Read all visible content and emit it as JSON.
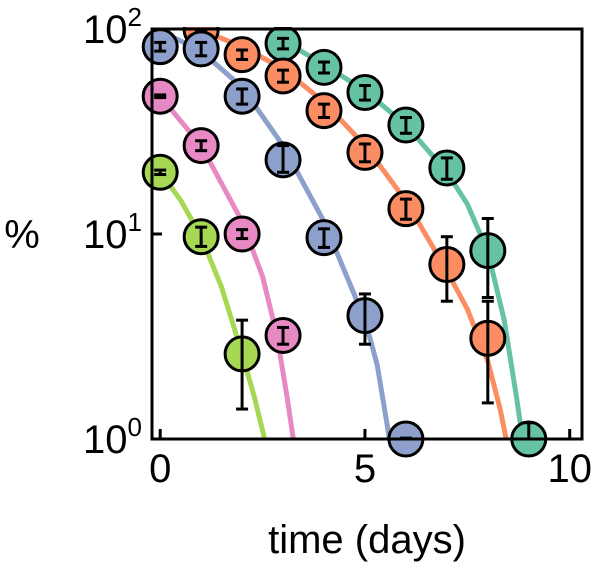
{
  "chart_data": {
    "type": "scatter",
    "title": "",
    "xlabel": "time (days)",
    "ylabel": "%",
    "xlim": [
      -0.2,
      10.3
    ],
    "ylim": [
      1,
      100
    ],
    "yscale": "log",
    "grid": false,
    "x_ticks": [
      0,
      5,
      10
    ],
    "x_tick_labels": [
      "0",
      "5",
      "10"
    ],
    "y_ticks": [
      1,
      10,
      100
    ],
    "y_tick_labels": [
      {
        "base": "10",
        "exp": "0"
      },
      {
        "base": "10",
        "exp": "1"
      },
      {
        "base": "10",
        "exp": "2"
      }
    ],
    "series": [
      {
        "color": "#a6d854",
        "points": [
          {
            "x": 0,
            "y": 20,
            "lo": 19.5,
            "hi": 20.5
          },
          {
            "x": 1,
            "y": 9.7,
            "lo": 8.7,
            "hi": 10.8
          },
          {
            "x": 2,
            "y": 2.6,
            "lo": 1.4,
            "hi": 3.8
          }
        ],
        "curve": [
          [
            0,
            20
          ],
          [
            0.5,
            14.6
          ],
          [
            1,
            9.7
          ],
          [
            1.5,
            5.5
          ],
          [
            2,
            2.6
          ],
          [
            2.3,
            1.6
          ],
          [
            2.55,
            1.0
          ]
        ]
      },
      {
        "color": "#e78ac3",
        "points": [
          {
            "x": 0,
            "y": 47,
            "lo": 46.3,
            "hi": 47.7
          },
          {
            "x": 1,
            "y": 27,
            "lo": 25.5,
            "hi": 28.5
          },
          {
            "x": 2,
            "y": 10,
            "lo": 9.5,
            "hi": 10.5
          },
          {
            "x": 3,
            "y": 3.2,
            "lo": 2.9,
            "hi": 3.5
          }
        ],
        "curve": [
          [
            0,
            47
          ],
          [
            1,
            27
          ],
          [
            2,
            11.5
          ],
          [
            2.5,
            6.2
          ],
          [
            2.85,
            3.2
          ],
          [
            3.1,
            1.6
          ],
          [
            3.25,
            1.0
          ]
        ]
      },
      {
        "color": "#8da0cb",
        "points": [
          {
            "x": 0,
            "y": 82,
            "lo": 78,
            "hi": 86
          },
          {
            "x": 1,
            "y": 80,
            "lo": 74,
            "hi": 86
          },
          {
            "x": 2,
            "y": 47,
            "lo": 43,
            "hi": 51
          },
          {
            "x": 3,
            "y": 23,
            "lo": 20,
            "hi": 27
          },
          {
            "x": 4,
            "y": 9.6,
            "lo": 8.6,
            "hi": 10.6
          },
          {
            "x": 5,
            "y": 4.0,
            "lo": 2.9,
            "hi": 5.1
          },
          {
            "x": 6,
            "y": 1,
            "lo": 0.99,
            "hi": 1.01
          }
        ],
        "curve": [
          [
            0,
            98
          ],
          [
            1,
            78
          ],
          [
            2,
            52
          ],
          [
            3,
            27
          ],
          [
            4,
            11.5
          ],
          [
            4.5,
            6.6
          ],
          [
            5,
            3.8
          ],
          [
            5.3,
            2.3
          ],
          [
            5.6,
            1.0
          ]
        ]
      },
      {
        "color": "#fc8d62",
        "points": [
          {
            "x": 1,
            "y": 99,
            "lo": 98,
            "hi": 100
          },
          {
            "x": 2,
            "y": 75,
            "lo": 71,
            "hi": 79
          },
          {
            "x": 3,
            "y": 59,
            "lo": 55,
            "hi": 63
          },
          {
            "x": 4,
            "y": 40,
            "lo": 37,
            "hi": 43
          },
          {
            "x": 5,
            "y": 25,
            "lo": 22.5,
            "hi": 27.5
          },
          {
            "x": 6,
            "y": 13.3,
            "lo": 11.8,
            "hi": 14.8
          },
          {
            "x": 7,
            "y": 7.1,
            "lo": 4.7,
            "hi": 9.7
          },
          {
            "x": 8,
            "y": 3.1,
            "lo": 1.5,
            "hi": 4.7
          }
        ],
        "curve": [
          [
            1,
            99
          ],
          [
            2,
            82
          ],
          [
            3,
            64
          ],
          [
            4,
            44
          ],
          [
            5,
            27
          ],
          [
            6,
            14.5
          ],
          [
            7,
            6.6
          ],
          [
            7.5,
            4.3
          ],
          [
            8,
            2.4
          ],
          [
            8.3,
            1.4
          ],
          [
            8.45,
            1.0
          ]
        ]
      },
      {
        "color": "#66c2a5",
        "points": [
          {
            "x": 3,
            "y": 85,
            "lo": 80,
            "hi": 90
          },
          {
            "x": 4,
            "y": 65,
            "lo": 61,
            "hi": 69
          },
          {
            "x": 5,
            "y": 49,
            "lo": 45,
            "hi": 53
          },
          {
            "x": 6,
            "y": 34,
            "lo": 31,
            "hi": 37
          },
          {
            "x": 7,
            "y": 21,
            "lo": 18.5,
            "hi": 23.5
          },
          {
            "x": 8,
            "y": 8.3,
            "lo": 4.9,
            "hi": 11.9
          },
          {
            "x": 9,
            "y": 1,
            "lo": 0.99,
            "hi": 1.2
          }
        ],
        "curve": [
          [
            3,
            88
          ],
          [
            4,
            67
          ],
          [
            5,
            50
          ],
          [
            6,
            34
          ],
          [
            7,
            20
          ],
          [
            7.5,
            14
          ],
          [
            8,
            8.2
          ],
          [
            8.4,
            3.8
          ],
          [
            8.7,
            1.6
          ],
          [
            8.85,
            1.0
          ]
        ]
      }
    ]
  }
}
